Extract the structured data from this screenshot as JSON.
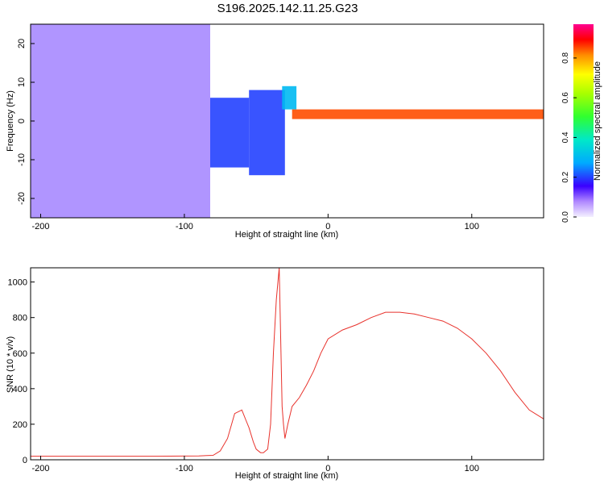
{
  "title": "S196.2025.142.11.25.G23",
  "chart_data": [
    {
      "type": "heatmap",
      "xlabel": "Height of straight line (km)",
      "ylabel": "Frequency (Hz)",
      "xlim": [
        -207,
        150
      ],
      "ylim": [
        -25,
        25
      ],
      "xticks": [
        -200,
        -100,
        0,
        100
      ],
      "yticks": [
        -20,
        -10,
        0,
        10,
        20
      ],
      "colorbar": {
        "label": "Normalized spectral amplitude",
        "range": [
          0,
          0.97
        ],
        "ticks": [
          0.0,
          0.2,
          0.4,
          0.6,
          0.8
        ],
        "tick_labels": [
          "0.0",
          "0.2",
          "0.4",
          "0.6",
          "0.8"
        ]
      },
      "bands": [
        {
          "x": [
            -207,
            -82
          ],
          "f": [
            -25,
            25
          ],
          "amp": 0.12
        },
        {
          "x": [
            -82,
            -55
          ],
          "f": [
            -12,
            6
          ],
          "amp": 0.2
        },
        {
          "x": [
            -55,
            -30
          ],
          "f": [
            -14,
            8
          ],
          "amp": 0.2
        },
        {
          "x": [
            -32,
            -22
          ],
          "f": [
            3,
            9
          ],
          "amp": 0.3
        },
        {
          "x": [
            -25,
            150
          ],
          "f": [
            0.5,
            3
          ],
          "amp": 0.85
        }
      ]
    },
    {
      "type": "line",
      "xlabel": "Height of straight line (km)",
      "ylabel": "SNR (10 * v/v)",
      "xlim": [
        -207,
        150
      ],
      "ylim": [
        0,
        1080
      ],
      "xticks": [
        -200,
        -100,
        0,
        100
      ],
      "yticks": [
        0,
        200,
        400,
        600,
        800,
        1000
      ],
      "series": [
        {
          "color": "#e8322c",
          "x": [
            -207,
            -180,
            -150,
            -120,
            -90,
            -80,
            -75,
            -70,
            -65,
            -60,
            -57,
            -55,
            -52,
            -50,
            -47,
            -45,
            -42,
            -40,
            -38,
            -36,
            -34,
            -32,
            -31,
            -30,
            -28,
            -25,
            -20,
            -15,
            -10,
            -5,
            0,
            10,
            20,
            30,
            40,
            50,
            60,
            70,
            80,
            90,
            100,
            110,
            120,
            130,
            140,
            150
          ],
          "y": [
            20,
            20,
            20,
            20,
            22,
            25,
            50,
            120,
            260,
            280,
            220,
            180,
            100,
            60,
            40,
            40,
            60,
            200,
            600,
            900,
            1080,
            300,
            200,
            120,
            200,
            300,
            350,
            420,
            500,
            600,
            680,
            730,
            760,
            800,
            830,
            830,
            820,
            800,
            780,
            740,
            680,
            600,
            500,
            380,
            280,
            230
          ]
        }
      ]
    }
  ]
}
